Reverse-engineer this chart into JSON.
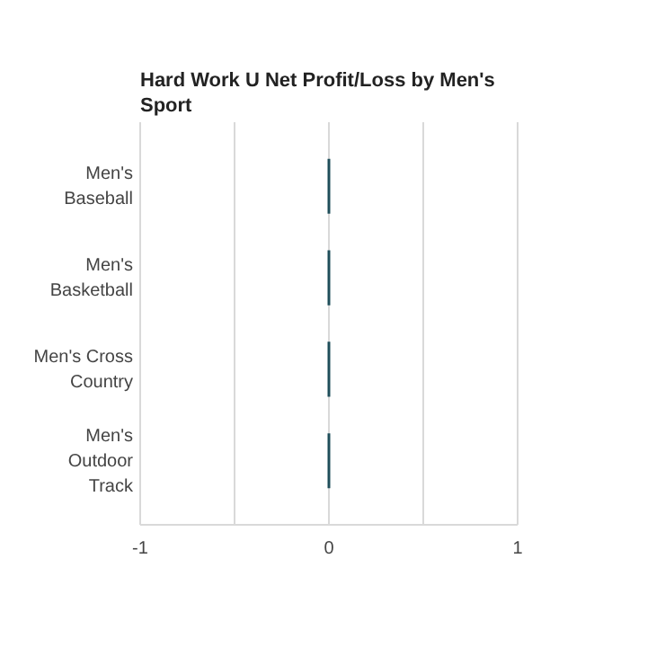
{
  "chart_data": {
    "type": "bar",
    "orientation": "horizontal",
    "title": "Hard Work U Net Profit/Loss by Men's Sport",
    "categories": [
      "Men's Baseball",
      "Men's Basketball",
      "Men's Cross Country",
      "Men's Outdoor Track"
    ],
    "values": [
      0,
      0,
      0,
      0
    ],
    "color": "#1f4e5a",
    "xlim": [
      -1,
      1
    ],
    "xticks": [
      -1,
      {
        "value": -0.5,
        "label": null
      },
      0,
      {
        "value": 0.5,
        "label": null
      },
      1
    ],
    "grid": "x"
  }
}
